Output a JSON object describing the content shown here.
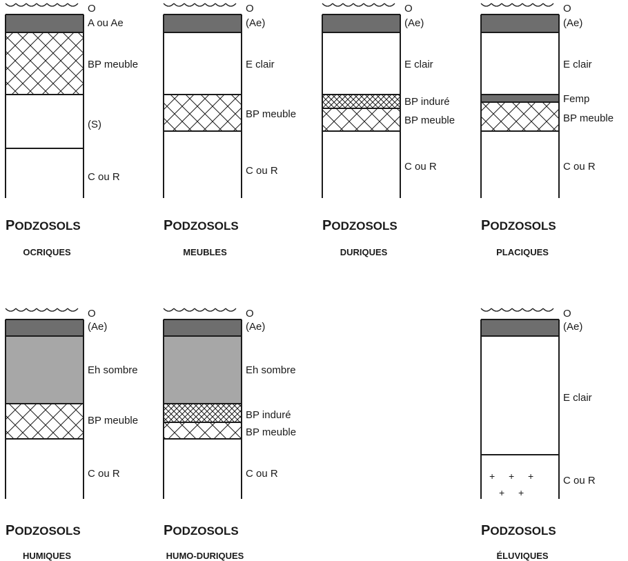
{
  "profiles": [
    {
      "id": "ocriques",
      "title_cap": "P",
      "title_rest": "ODZOSOLS",
      "subtitle": "OCRIQUES",
      "horizons": [
        {
          "label": "O",
          "fill": "litter"
        },
        {
          "label": "A ou Ae",
          "fill": "dark"
        },
        {
          "label": "BP meuble",
          "fill": "hatch"
        },
        {
          "label": "(S)",
          "fill": "white"
        },
        {
          "label": "C ou R",
          "fill": "white"
        }
      ]
    },
    {
      "id": "meubles",
      "title_cap": "P",
      "title_rest": "ODZOSOLS",
      "subtitle": "MEUBLES",
      "horizons": [
        {
          "label": "O",
          "fill": "litter"
        },
        {
          "label": "(Ae)",
          "fill": "dark"
        },
        {
          "label": "E clair",
          "fill": "white"
        },
        {
          "label": "BP meuble",
          "fill": "hatch"
        },
        {
          "label": "C ou R",
          "fill": "white"
        }
      ]
    },
    {
      "id": "duriques",
      "title_cap": "P",
      "title_rest": "ODZOSOLS",
      "subtitle": "DURIQUES",
      "horizons": [
        {
          "label": "O",
          "fill": "litter"
        },
        {
          "label": "(Ae)",
          "fill": "dark"
        },
        {
          "label": "E clair",
          "fill": "white"
        },
        {
          "label": "BP induré",
          "fill": "dense-hatch"
        },
        {
          "label": "BP meuble",
          "fill": "hatch"
        },
        {
          "label": "C ou R",
          "fill": "white"
        }
      ]
    },
    {
      "id": "placiques",
      "title_cap": "P",
      "title_rest": "ODZOSOLS",
      "subtitle": "PLACIQUES",
      "horizons": [
        {
          "label": "O",
          "fill": "litter"
        },
        {
          "label": "(Ae)",
          "fill": "dark"
        },
        {
          "label": "E clair",
          "fill": "white"
        },
        {
          "label": "Femp",
          "fill": "dark"
        },
        {
          "label": "BP meuble",
          "fill": "hatch"
        },
        {
          "label": "C ou R",
          "fill": "white"
        }
      ]
    },
    {
      "id": "humiques",
      "title_cap": "P",
      "title_rest": "ODZOSOLS",
      "subtitle": "HUMIQUES",
      "horizons": [
        {
          "label": "O",
          "fill": "litter"
        },
        {
          "label": "(Ae)",
          "fill": "dark"
        },
        {
          "label": "Eh sombre",
          "fill": "gray"
        },
        {
          "label": "BP meuble",
          "fill": "hatch"
        },
        {
          "label": "C ou R",
          "fill": "white"
        }
      ]
    },
    {
      "id": "humo-duriques",
      "title_cap": "P",
      "title_rest": "ODZOSOLS",
      "subtitle": "HUMO-DURIQUES",
      "horizons": [
        {
          "label": "O",
          "fill": "litter"
        },
        {
          "label": "(Ae)",
          "fill": "dark"
        },
        {
          "label": "Eh sombre",
          "fill": "gray"
        },
        {
          "label": "BP induré",
          "fill": "dense-hatch"
        },
        {
          "label": "BP meuble",
          "fill": "hatch"
        },
        {
          "label": "C ou R",
          "fill": "white"
        }
      ]
    },
    {
      "id": "eluviques",
      "title_cap": "P",
      "title_rest": "ODZOSOLS",
      "subtitle": "ÉLUVIQUES",
      "horizons": [
        {
          "label": "O",
          "fill": "litter"
        },
        {
          "label": "(Ae)",
          "fill": "dark"
        },
        {
          "label": "E clair",
          "fill": "white"
        },
        {
          "label": "C ou R",
          "fill": "plus"
        }
      ]
    }
  ],
  "colors": {
    "dark": "#6e6e6e",
    "gray": "#a7a7a7",
    "line": "#1a1a1a"
  }
}
